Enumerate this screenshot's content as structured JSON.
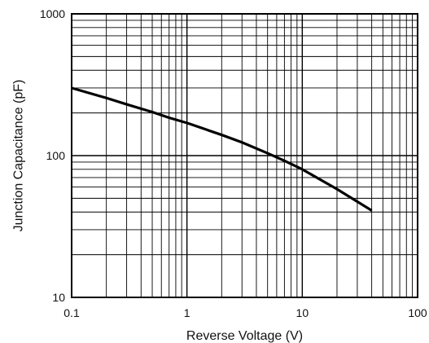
{
  "chart_data": {
    "type": "line",
    "title": "",
    "xlabel": "Reverse Voltage (V)",
    "ylabel": "Junction Capacitance (pF)",
    "xscale": "log",
    "yscale": "log",
    "xlim": [
      0.1,
      100
    ],
    "ylim": [
      10,
      1000
    ],
    "grid": true,
    "legend": "none",
    "x_tick_labels": [
      "0.1",
      "1",
      "10",
      "100"
    ],
    "y_tick_labels": [
      "10",
      "100",
      "1000"
    ],
    "series": [
      {
        "x": [
          0.1,
          0.2,
          0.3,
          0.5,
          0.7,
          1,
          2,
          3,
          5,
          7,
          10,
          20,
          40
        ],
        "y": [
          300,
          255,
          230,
          203,
          185,
          170,
          140,
          124,
          104,
          92,
          80,
          58,
          41
        ]
      }
    ],
    "colors": {
      "curve": "#000000",
      "grid": "#000000",
      "frame": "#000000",
      "background": "#ffffff"
    }
  }
}
